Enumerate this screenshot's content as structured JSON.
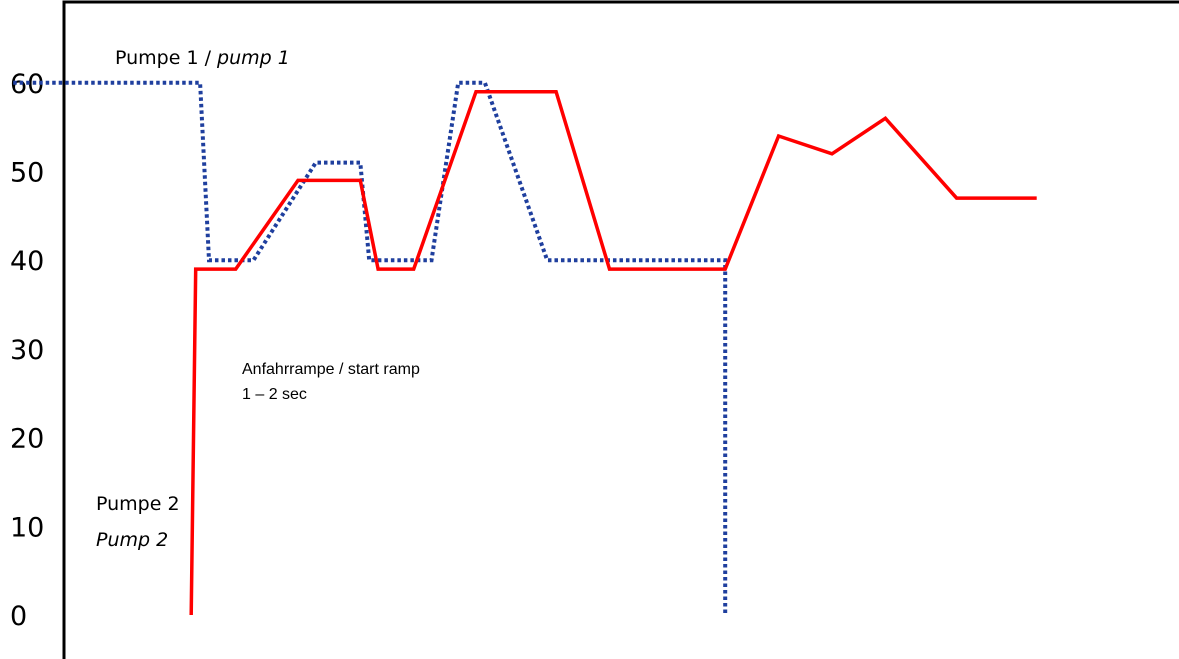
{
  "chart_data": {
    "type": "line",
    "title": "",
    "xlabel": "",
    "ylabel": "",
    "ylim": [
      0,
      65
    ],
    "y_ticks": [
      "0",
      "10",
      "20",
      "30",
      "40",
      "50",
      "60"
    ],
    "grid": false,
    "legend": "none",
    "colors": {
      "pump1": "#1f3f9e",
      "pump2": "#ff0000",
      "axis": "#000000"
    },
    "series": [
      {
        "key": "pump1",
        "style": "dotted",
        "x": [
          0,
          21,
          22,
          27,
          34,
          39,
          40,
          47,
          50,
          53,
          60,
          62,
          69,
          71,
          78,
          80,
          80
        ],
        "y": [
          60,
          60,
          40,
          40,
          51,
          51,
          40,
          40,
          60,
          60,
          40,
          40,
          40,
          40,
          40,
          40,
          0
        ]
      },
      {
        "key": "pump2",
        "style": "solid",
        "x": [
          20,
          20.5,
          25,
          32,
          39,
          41,
          45,
          52,
          61,
          67,
          73,
          80,
          86,
          92,
          98,
          106,
          115
        ],
        "y": [
          0,
          39,
          39,
          49,
          49,
          39,
          39,
          59,
          59,
          39,
          39,
          39,
          54,
          52,
          56,
          47,
          47
        ]
      }
    ],
    "annotations": {
      "pump1_label_main": "Pumpe 1 / ",
      "pump1_label_italic": "pump 1",
      "ramp_line1": "Anfahrrampe / start ramp",
      "ramp_line2": "1 – 2 sec",
      "pump2_label_line1": "Pumpe 2",
      "pump2_label_line2": "Pump 2"
    }
  }
}
